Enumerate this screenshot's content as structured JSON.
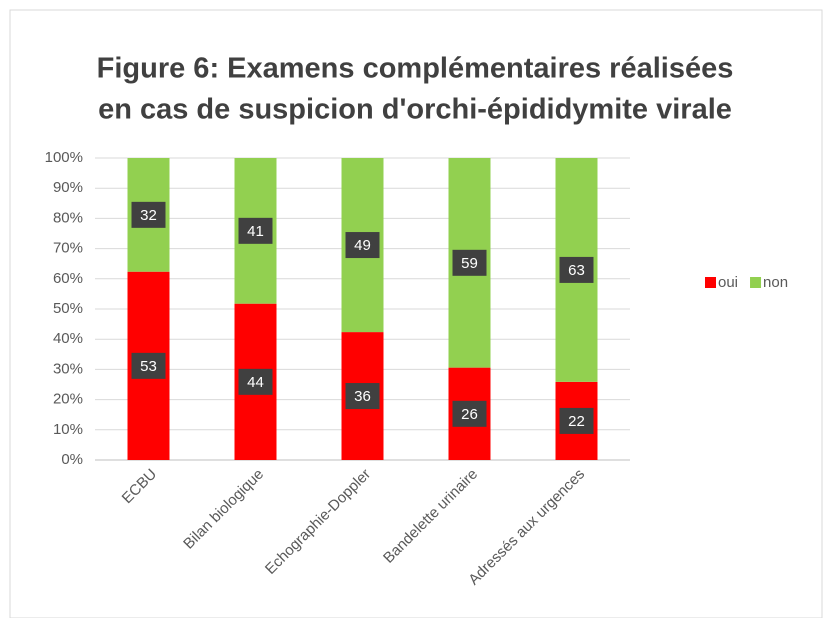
{
  "chart_data": {
    "type": "bar",
    "stacking": "percent",
    "title": [
      "Figure 6: Examens complémentaires réalisées",
      "en cas de suspicion d'orchi-épididymite virale"
    ],
    "categories": [
      "ECBU",
      "Bilan biologique",
      "Echographie-Doppler",
      "Bandelette urinaire",
      "Adressés aux urgences"
    ],
    "series": [
      {
        "name": "oui",
        "color": "#ff0000",
        "values": [
          53,
          44,
          36,
          26,
          22
        ]
      },
      {
        "name": "non",
        "color": "#92d050",
        "values": [
          32,
          41,
          49,
          59,
          63
        ]
      }
    ],
    "ylim": [
      0,
      100
    ],
    "yticks": [
      {
        "value": 0,
        "label": "0%"
      },
      {
        "value": 10,
        "label": "10%"
      },
      {
        "value": 20,
        "label": "20%"
      },
      {
        "value": 30,
        "label": "30%"
      },
      {
        "value": 40,
        "label": "40%"
      },
      {
        "value": 50,
        "label": "50%"
      },
      {
        "value": 60,
        "label": "60%"
      },
      {
        "value": 70,
        "label": "70%"
      },
      {
        "value": 80,
        "label": "80%"
      },
      {
        "value": 90,
        "label": "90%"
      },
      {
        "value": 100,
        "label": "100%"
      }
    ],
    "grid": true,
    "legend": "right"
  }
}
